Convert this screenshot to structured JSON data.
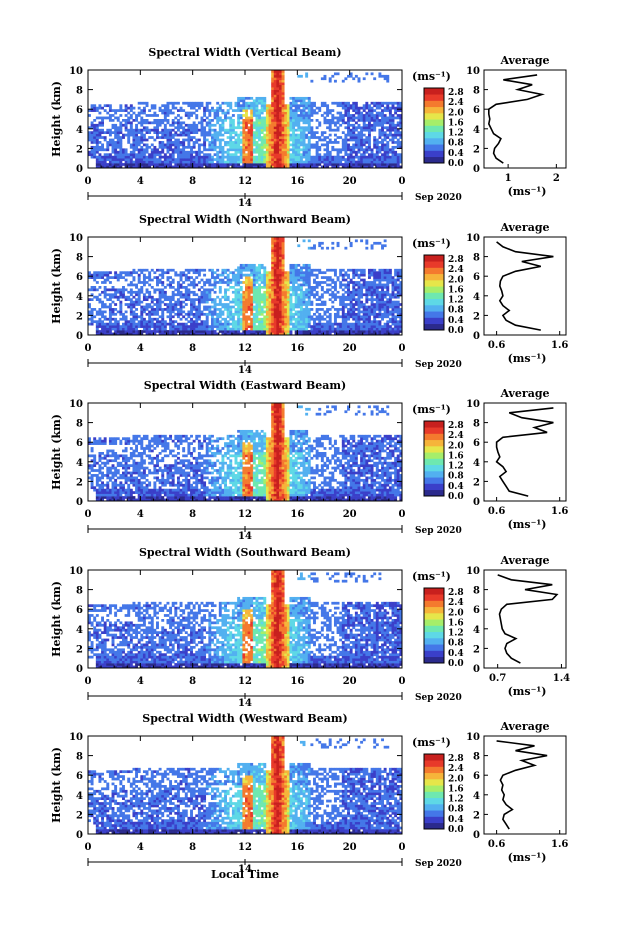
{
  "figure": {
    "xlabel": "Local Time",
    "colorbar_unit": "(ms⁻¹)",
    "colorbar_ticks": [
      "2.8",
      "2.4",
      "2.0",
      "1.6",
      "1.2",
      "0.8",
      "0.4",
      "0.0"
    ],
    "colorbar_colors": [
      "#2b2a8c",
      "#3a3fc9",
      "#4477e8",
      "#52b0f0",
      "#5ed8e6",
      "#6ee8b0",
      "#a6ee6a",
      "#e6e64a",
      "#f6b43a",
      "#f47a2e",
      "#e83a2a",
      "#c8201e"
    ],
    "date_tick": "14",
    "date_label": "Sep 2020",
    "average_title": "Average",
    "average_unit": "(ms⁻¹)"
  },
  "chart_data": [
    {
      "type": "heatmap",
      "title": "Spectral Width (Vertical Beam)",
      "ylabel": "Height (km)",
      "xlabel": "",
      "x_ticks": [
        "0",
        "4",
        "8",
        "12",
        "16",
        "20",
        "0"
      ],
      "y_ticks": [
        "0",
        "2",
        "4",
        "6",
        "8",
        "10"
      ],
      "xlim": [
        0,
        24
      ],
      "ylim": [
        0,
        10
      ],
      "clim": [
        0.0,
        3.0
      ],
      "peak_time_range": [
        13.5,
        15.5
      ],
      "profile": {
        "title": "Average",
        "x_ticks": [
          "1",
          "2"
        ],
        "xlim": [
          0.5,
          2.2
        ],
        "height": [
          0.5,
          1,
          1.5,
          2,
          2.5,
          3,
          3.5,
          4,
          4.5,
          5,
          5.5,
          6,
          6.5,
          7,
          7.5,
          8,
          8.5,
          9,
          9.5
        ],
        "values": [
          0.9,
          0.75,
          0.7,
          0.72,
          0.8,
          0.85,
          0.7,
          0.65,
          0.6,
          0.62,
          0.6,
          0.6,
          0.75,
          1.4,
          1.7,
          1.2,
          1.5,
          0.9,
          1.6
        ]
      }
    },
    {
      "type": "heatmap",
      "title": "Spectral Width (Northward Beam)",
      "ylabel": "Height (km)",
      "xlabel": "",
      "x_ticks": [
        "0",
        "4",
        "8",
        "12",
        "16",
        "20",
        "0"
      ],
      "y_ticks": [
        "0",
        "2",
        "4",
        "6",
        "8",
        "10"
      ],
      "xlim": [
        0,
        24
      ],
      "ylim": [
        0,
        10
      ],
      "clim": [
        0.0,
        3.0
      ],
      "peak_time_range": [
        13.5,
        15.5
      ],
      "profile": {
        "title": "Average",
        "x_ticks": [
          "0.6",
          "1.6"
        ],
        "xlim": [
          0.4,
          1.7
        ],
        "height": [
          0.5,
          1,
          1.5,
          2,
          2.5,
          3,
          3.5,
          4,
          4.5,
          5,
          5.5,
          6,
          6.5,
          7,
          7.5,
          8,
          8.5,
          9,
          9.5
        ],
        "values": [
          1.3,
          0.9,
          0.75,
          0.7,
          0.8,
          0.7,
          0.65,
          0.7,
          0.68,
          0.65,
          0.66,
          0.7,
          0.9,
          1.3,
          1.0,
          1.5,
          0.9,
          0.7,
          0.6
        ]
      }
    },
    {
      "type": "heatmap",
      "title": "Spectral Width (Eastward Beam)",
      "ylabel": "Height (km)",
      "xlabel": "",
      "x_ticks": [
        "0",
        "4",
        "8",
        "12",
        "16",
        "20",
        "0"
      ],
      "y_ticks": [
        "0",
        "2",
        "4",
        "6",
        "8",
        "10"
      ],
      "xlim": [
        0,
        24
      ],
      "ylim": [
        0,
        10
      ],
      "clim": [
        0.0,
        3.0
      ],
      "peak_time_range": [
        13.5,
        15.5
      ],
      "profile": {
        "title": "Average",
        "x_ticks": [
          "0.6",
          "1.6"
        ],
        "xlim": [
          0.4,
          1.7
        ],
        "height": [
          0.5,
          1,
          1.5,
          2,
          2.5,
          3,
          3.5,
          4,
          4.5,
          5,
          5.5,
          6,
          6.5,
          7,
          7.5,
          8,
          8.5,
          9,
          9.5
        ],
        "values": [
          1.1,
          0.8,
          0.75,
          0.7,
          0.65,
          0.75,
          0.7,
          0.6,
          0.65,
          0.62,
          0.6,
          0.6,
          0.7,
          1.4,
          1.2,
          1.5,
          1.0,
          0.8,
          1.5
        ]
      }
    },
    {
      "type": "heatmap",
      "title": "Spectral Width (Southward Beam)",
      "ylabel": "Height (km)",
      "xlabel": "",
      "x_ticks": [
        "0",
        "4",
        "8",
        "12",
        "16",
        "20",
        "0"
      ],
      "y_ticks": [
        "0",
        "2",
        "4",
        "6",
        "8",
        "10"
      ],
      "xlim": [
        0,
        24
      ],
      "ylim": [
        0,
        10
      ],
      "clim": [
        0.0,
        3.0
      ],
      "peak_time_range": [
        13.5,
        15.5
      ],
      "profile": {
        "title": "Average",
        "x_ticks": [
          "0.7",
          "1.4"
        ],
        "xlim": [
          0.55,
          1.45
        ],
        "height": [
          0.5,
          1,
          1.5,
          2,
          2.5,
          3,
          3.5,
          4,
          4.5,
          5,
          5.5,
          6,
          6.5,
          7,
          7.5,
          8,
          8.5,
          9,
          9.5
        ],
        "values": [
          0.95,
          0.85,
          0.8,
          0.78,
          0.8,
          0.9,
          0.78,
          0.75,
          0.74,
          0.73,
          0.72,
          0.74,
          0.8,
          1.3,
          1.35,
          1.0,
          1.3,
          0.85,
          0.7
        ]
      }
    },
    {
      "type": "heatmap",
      "title": "Spectral Width (Westward Beam)",
      "ylabel": "Height (km)",
      "xlabel": "Local Time",
      "x_ticks": [
        "0",
        "4",
        "8",
        "12",
        "16",
        "20",
        "0"
      ],
      "y_ticks": [
        "0",
        "2",
        "4",
        "6",
        "8",
        "10"
      ],
      "xlim": [
        0,
        24
      ],
      "ylim": [
        0,
        10
      ],
      "clim": [
        0.0,
        3.0
      ],
      "peak_time_range": [
        13.5,
        15.5
      ],
      "profile": {
        "title": "Average",
        "x_ticks": [
          "0.6",
          "1.6"
        ],
        "xlim": [
          0.4,
          1.7
        ],
        "height": [
          0.5,
          1,
          1.5,
          2,
          2.5,
          3,
          3.5,
          4,
          4.5,
          5,
          5.5,
          6,
          6.5,
          7,
          7.5,
          8,
          8.5,
          9,
          9.5
        ],
        "values": [
          0.8,
          0.75,
          0.7,
          0.72,
          0.85,
          0.75,
          0.7,
          0.72,
          0.68,
          0.7,
          0.66,
          0.7,
          0.9,
          1.2,
          1.0,
          1.4,
          0.9,
          1.2,
          0.6
        ]
      }
    }
  ]
}
